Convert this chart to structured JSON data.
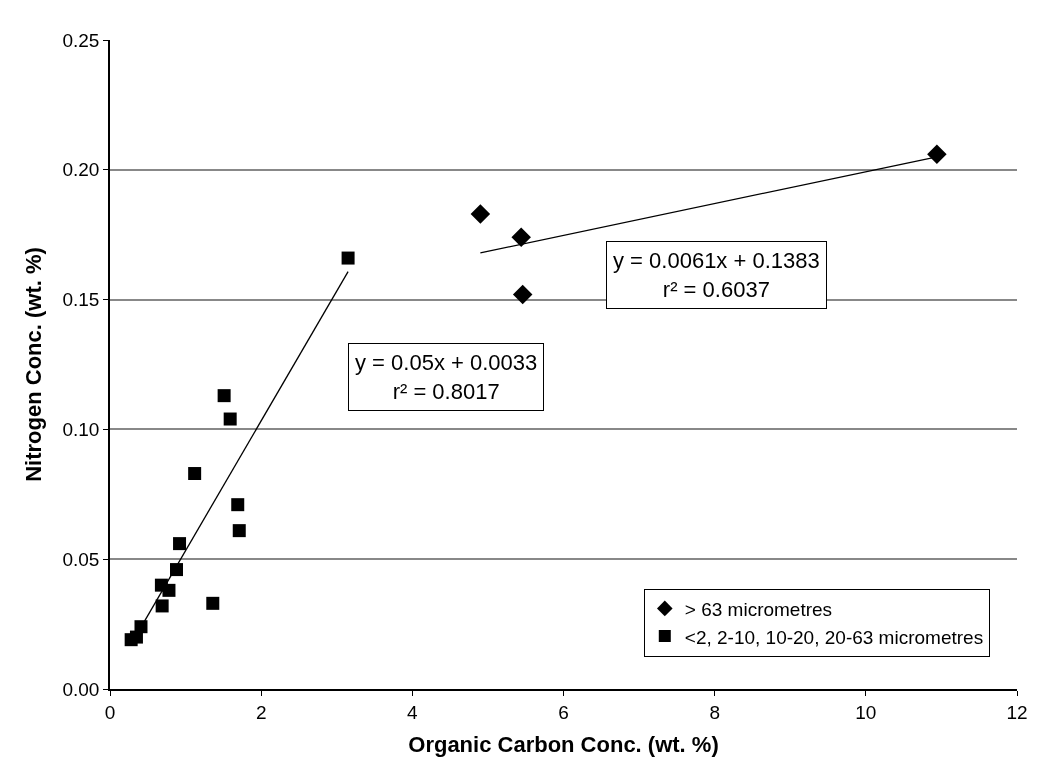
{
  "chart_data": {
    "type": "scatter",
    "xlabel": "Organic Carbon Conc. (wt. %)",
    "ylabel": "Nitrogen Conc. (wt. %)",
    "xlim": [
      0,
      12
    ],
    "xticks": [
      0,
      2,
      4,
      6,
      8,
      10,
      12
    ],
    "ylim": [
      0,
      0.25
    ],
    "yticks": [
      {
        "value": 0,
        "label": "0.00"
      },
      {
        "value": 0.05,
        "label": "0.05"
      },
      {
        "value": 0.1,
        "label": "0.10"
      },
      {
        "value": 0.15,
        "label": "0.15"
      },
      {
        "value": 0.2,
        "label": "0.20"
      },
      {
        "value": 0.25,
        "label": "0.25"
      }
    ],
    "grid": "y",
    "legend": "bottom right",
    "series": [
      {
        "name": "> 63 micrometres",
        "color": "#000000",
        "marker": "diamond",
        "x": [
          4.9,
          5.44,
          5.46,
          10.94
        ],
        "values": [
          0.183,
          0.174,
          0.152,
          0.206
        ]
      },
      {
        "name": "<2, 2-10, 10-20, 20-63 micrometres",
        "color": "#000000",
        "marker": "square",
        "x": [
          0.28,
          0.35,
          0.41,
          0.69,
          0.68,
          0.78,
          0.88,
          0.92,
          1.36,
          1.12,
          1.51,
          1.59,
          1.69,
          1.71,
          3.15
        ],
        "values": [
          0.019,
          0.02,
          0.024,
          0.032,
          0.04,
          0.038,
          0.046,
          0.056,
          0.033,
          0.083,
          0.113,
          0.104,
          0.071,
          0.061,
          0.166
        ]
      },
      {
        "type": "line",
        "color": "#000000",
        "marker": "none",
        "x": [
          4.9,
          10.94
        ],
        "values": [
          0.168,
          0.205
        ]
      },
      {
        "type": "line",
        "color": "#000000",
        "marker": "none",
        "x": [
          0.28,
          3.15
        ],
        "values": [
          0.0173,
          0.1608
        ]
      }
    ],
    "annotations": [
      "y = 0.0061x + 0.1383\nr² = 0.6037",
      "y = 0.05x + 0.0033\nr² = 0.8017"
    ]
  }
}
